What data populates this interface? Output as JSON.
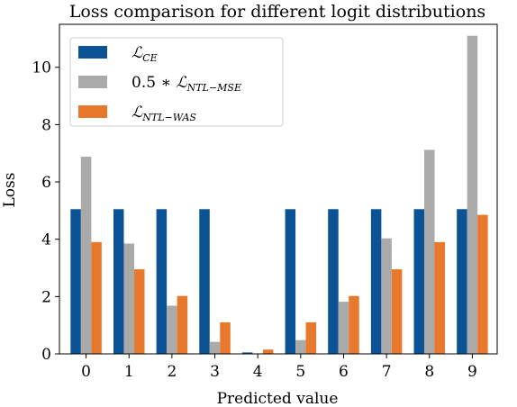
{
  "chart_data": {
    "type": "bar",
    "title": "Loss comparison for different logit distributions",
    "xlabel": "Predicted value",
    "ylabel": "Loss",
    "categories": [
      "0",
      "1",
      "2",
      "3",
      "4",
      "5",
      "6",
      "7",
      "8",
      "9"
    ],
    "ylim": [
      0,
      11.5
    ],
    "yticks": [
      0,
      2,
      4,
      6,
      8,
      10
    ],
    "grid": false,
    "legend_position": "top-left",
    "series": [
      {
        "name": "L_{CE}",
        "legend_main": "ℒ",
        "legend_sub": "CE",
        "legend_prefix": "",
        "color": "#0b5394",
        "values": [
          5.05,
          5.05,
          5.05,
          5.05,
          0.05,
          5.05,
          5.05,
          5.05,
          5.05,
          5.05
        ]
      },
      {
        "name": "0.5 * L_{NTL-MSE}",
        "legend_main": "ℒ",
        "legend_sub": "NTL−MSE",
        "legend_prefix": "0.5 ∗ ",
        "color": "#aaaaaa",
        "values": [
          6.88,
          3.85,
          1.68,
          0.42,
          0.0,
          0.48,
          1.82,
          4.03,
          7.12,
          11.1
        ]
      },
      {
        "name": "L_{NTL-WAS}",
        "legend_main": "ℒ",
        "legend_sub": "NTL−WAS",
        "legend_prefix": "",
        "color": "#e8782b",
        "values": [
          3.9,
          2.95,
          2.02,
          1.1,
          0.15,
          1.1,
          2.02,
          2.95,
          3.9,
          4.85
        ]
      }
    ]
  }
}
